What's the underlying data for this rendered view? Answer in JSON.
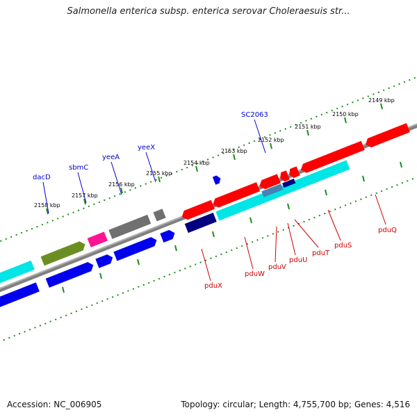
{
  "title": "Salmonella enterica subsp. enterica serovar Choleraesuis str...",
  "footer": {
    "accession": "Accession: NC_006905",
    "topology": "Topology: circular; Length: 4,755,700 bp; Genes: 4,516"
  },
  "colors": {
    "strand_line": "#808080",
    "ticks": "#1a8c1a",
    "forward_label": "#0000cc",
    "reverse_label": "#cc0000"
  },
  "ticks": [
    {
      "kbp": 2149,
      "label": "2149 kbp"
    },
    {
      "kbp": 2150,
      "label": "2150 kbp"
    },
    {
      "kbp": 2151,
      "label": "2151 kbp"
    },
    {
      "kbp": 2152,
      "label": "2152 kbp"
    },
    {
      "kbp": 2153,
      "label": "2153 kbp"
    },
    {
      "kbp": 2154,
      "label": "2154 kbp"
    },
    {
      "kbp": 2155,
      "label": "2155 kbp"
    },
    {
      "kbp": 2156,
      "label": "2156 kbp"
    },
    {
      "kbp": 2157,
      "label": "2157 kbp"
    },
    {
      "kbp": 2158,
      "label": "2158 kbp"
    }
  ],
  "forward_labels": [
    {
      "name": "dacD"
    },
    {
      "name": "sbmC"
    },
    {
      "name": "yeeA"
    },
    {
      "name": "yeeX"
    },
    {
      "name": "SC2063"
    }
  ],
  "reverse_labels": [
    {
      "name": "pduX"
    },
    {
      "name": "pduW"
    },
    {
      "name": "pduV"
    },
    {
      "name": "pduU"
    },
    {
      "name": "pduT"
    },
    {
      "name": "pduS"
    },
    {
      "name": "pduQ"
    }
  ]
}
